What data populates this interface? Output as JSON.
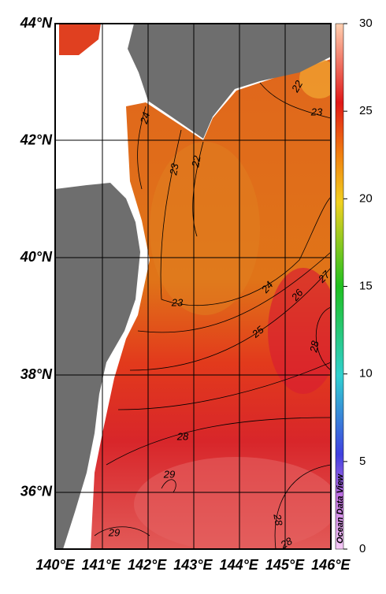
{
  "map": {
    "x_labels": [
      "140°E",
      "141°E",
      "142°E",
      "143°E",
      "144°E",
      "145°E",
      "146°E"
    ],
    "y_labels": [
      "44°N",
      "42°N",
      "40°N",
      "38°N",
      "36°N"
    ],
    "colorbar": {
      "lim": [
        0,
        30
      ],
      "ticks": [
        0,
        5,
        10,
        15,
        20,
        25,
        30
      ]
    },
    "contour_labels": [
      "22",
      "23",
      "24",
      "23",
      "22",
      "23",
      "24",
      "26",
      "27",
      "25",
      "28",
      "28",
      "29",
      "28",
      "29",
      "28"
    ],
    "watermark": "Ocean Data View"
  }
}
